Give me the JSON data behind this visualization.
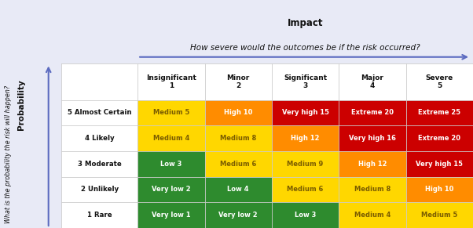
{
  "title1": "Impact",
  "title2": "How severe would the outcomes be if the risk occurred?",
  "col_headers": [
    "Insignificant\n1",
    "Minor\n2",
    "Significant\n3",
    "Major\n4",
    "Severe\n5"
  ],
  "row_headers": [
    "5 Almost Certain",
    "4 Likely",
    "3 Moderate",
    "2 Unlikely",
    "1 Rare"
  ],
  "cell_texts": [
    [
      "Medium 5",
      "High 10",
      "Very high 15",
      "Extreme 20",
      "Extreme 25"
    ],
    [
      "Medium 4",
      "Medium 8",
      "High 12",
      "Very high 16",
      "Extreme 20"
    ],
    [
      "Low 3",
      "Medium 6",
      "Medium 9",
      "High 12",
      "Very high 15"
    ],
    [
      "Very low 2",
      "Low 4",
      "Medium 6",
      "Medium 8",
      "High 10"
    ],
    [
      "Very low 1",
      "Very low 2",
      "Low 3",
      "Medium 4",
      "Medium 5"
    ]
  ],
  "cell_colors": [
    [
      "#FFD700",
      "#FF8C00",
      "#CC0000",
      "#CC0000",
      "#CC0000"
    ],
    [
      "#FFD700",
      "#FFD700",
      "#FF8C00",
      "#CC0000",
      "#CC0000"
    ],
    [
      "#2E8B2E",
      "#FFD700",
      "#FFD700",
      "#FF8C00",
      "#CC0000"
    ],
    [
      "#2E8B2E",
      "#2E8B2E",
      "#FFD700",
      "#FFD700",
      "#FF8C00"
    ],
    [
      "#2E8B2E",
      "#2E8B2E",
      "#2E8B2E",
      "#FFD700",
      "#FFD700"
    ]
  ],
  "cell_text_colors": [
    [
      "#7a5c00",
      "#ffffff",
      "#ffffff",
      "#ffffff",
      "#ffffff"
    ],
    [
      "#7a5c00",
      "#7a5c00",
      "#ffffff",
      "#ffffff",
      "#ffffff"
    ],
    [
      "#ffffff",
      "#7a5c00",
      "#7a5c00",
      "#ffffff",
      "#ffffff"
    ],
    [
      "#ffffff",
      "#ffffff",
      "#7a5c00",
      "#7a5c00",
      "#ffffff"
    ],
    [
      "#ffffff",
      "#ffffff",
      "#ffffff",
      "#7a5c00",
      "#7a5c00"
    ]
  ],
  "bg_color": "#e8eaf6",
  "arrow_color": "#5c6bc0",
  "ylabel_main": "Probability",
  "ylabel_sub": "What is the probability the risk will happen?",
  "grid_color": "#cccccc",
  "header_bg": "#ffffff",
  "table_bg": "#ffffff"
}
